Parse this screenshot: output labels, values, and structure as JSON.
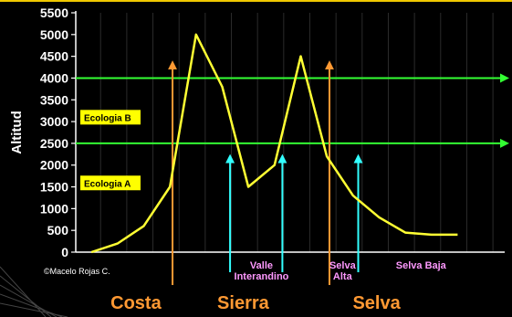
{
  "chart_data": {
    "type": "line",
    "ylabel": "Altitud",
    "xlabel": "",
    "ylim": [
      0,
      5500
    ],
    "yticks": [
      0,
      500,
      1000,
      1500,
      2000,
      2500,
      3000,
      3500,
      4000,
      4500,
      5000,
      5500
    ],
    "grid": "vertical",
    "series": [
      {
        "color": "#ffff33",
        "x": [
          0,
          1,
          2,
          3,
          4,
          5,
          6,
          7,
          8,
          9,
          10,
          11,
          12,
          13,
          14,
          15,
          16
        ],
        "values": [
          0,
          200,
          600,
          1500,
          5000,
          3800,
          1500,
          2000,
          4500,
          2200,
          1300,
          800,
          450,
          400,
          400,
          null,
          null
        ]
      }
    ],
    "reference_lines": [
      {
        "value": 4000,
        "color": "#33ff33"
      },
      {
        "value": 2500,
        "color": "#33ff33"
      }
    ],
    "boxes": [
      {
        "label": "Ecologia B",
        "value": 3100
      },
      {
        "label": "Ecologia A",
        "value": 1590
      }
    ],
    "arrows_orange": [
      3.1,
      9.1
    ],
    "arrows_cyan": [
      5.3,
      7.3,
      10.2
    ],
    "zone_labels": [
      {
        "text": "Valle\nInterandino",
        "x": 6.5
      },
      {
        "text": "Selva\nAlta",
        "x": 9.6
      },
      {
        "text": "Selva Baja",
        "x": 12.6
      }
    ],
    "region_labels": [
      {
        "text": "Costa",
        "x": 1.7
      },
      {
        "text": "Sierra",
        "x": 5.8
      },
      {
        "text": "Selva",
        "x": 10.9
      }
    ],
    "credit": "©Macelo Rojas C."
  },
  "colors": {
    "background": "#000000",
    "axes": "#ffffff",
    "line": "#ffff33",
    "ecology_line": "#33ff33",
    "orange_arrow": "#ff9933",
    "cyan_arrow": "#33ffff",
    "zone_text": "#ff99ff",
    "region_text": "#ff9933",
    "box_fill": "#ffff00",
    "top_border": "#f0c800"
  }
}
